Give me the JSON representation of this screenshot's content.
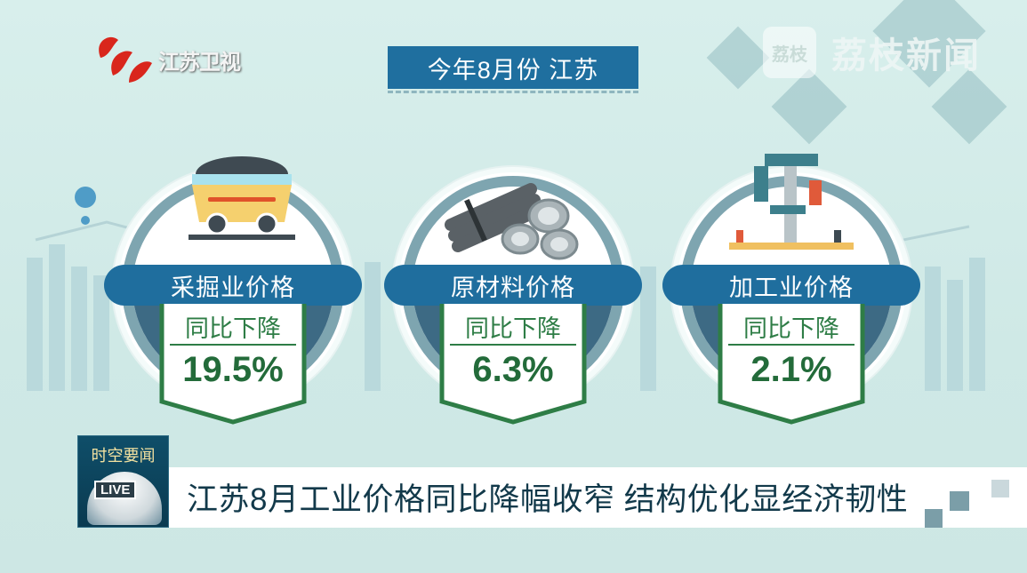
{
  "channel_logo": {
    "text": "江苏卫视",
    "color": "#d9261c"
  },
  "watermark": {
    "text": "荔枝新闻",
    "icon_text": "荔枝"
  },
  "header": {
    "title": "今年8月份 江苏"
  },
  "cards": [
    {
      "title": "采掘业价格",
      "sub": "同比下降",
      "value": "19.5%",
      "icon": "coal-cart-icon"
    },
    {
      "title": "原材料价格",
      "sub": "同比下降",
      "value": "6.3%",
      "icon": "steel-pipes-icon"
    },
    {
      "title": "加工业价格",
      "sub": "同比下降",
      "value": "2.1%",
      "icon": "drill-press-icon"
    }
  ],
  "ticker": {
    "program": "时空要闻",
    "live": "LIVE",
    "headline": "江苏8月工业价格同比降幅收窄  结构优化显经济韧性"
  },
  "colors": {
    "banner": "#1f6e9e",
    "badge_green": "#2e7d46",
    "ring": "#7ea5b0"
  }
}
